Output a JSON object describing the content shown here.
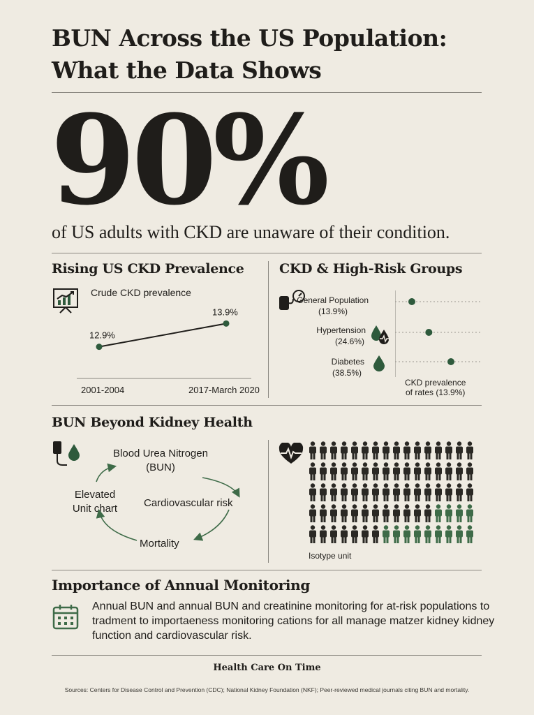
{
  "header": {
    "title_line1": "BUN Across the US Population:",
    "title_line2": "What the Data Shows"
  },
  "hero": {
    "stat": "90%",
    "caption": "of US adults with CKD are unaware of their condition."
  },
  "prevalence": {
    "title": "Rising US CKD Prevalence",
    "subtitle": "Crude CKD prevalence",
    "icon": "chart-presentation-icon",
    "chart_data": {
      "type": "line",
      "categories": [
        "2001-2004",
        "2017-March 2020"
      ],
      "values": [
        12.9,
        13.9
      ],
      "value_labels": [
        "12.9%",
        "13.9%"
      ],
      "title": "Crude CKD prevalence",
      "color": "#2e5a3c"
    }
  },
  "groups": {
    "title": "CKD & High-Risk Groups",
    "items": [
      {
        "label": "General Population",
        "value_label": "(13.9%)",
        "icon": "blood-pressure-monitor-icon"
      },
      {
        "label": "Hypertension",
        "value_label": "(24.6%)",
        "icon": "blood-drops-icon"
      },
      {
        "label": "Diabetes",
        "value_label": "(38.5%)",
        "icon": "blood-drop-icon"
      }
    ],
    "axis_label_line1": "CKD prevalence",
    "axis_label_line2": "of rates (13.9%)",
    "chart_data": {
      "type": "scatter",
      "categories": [
        "General Population",
        "Hypertension",
        "Diabetes"
      ],
      "values": [
        13.9,
        24.6,
        38.5
      ],
      "color": "#2e5a3c"
    }
  },
  "beyond": {
    "title": "BUN Beyond Kidney Health",
    "cycle": {
      "top_line1": "Blood Urea Nitrogen",
      "top_line2": "(BUN)",
      "right": "Cardiovascular risk",
      "bottom": "Mortality",
      "left_line1": "Elevated",
      "left_line2": "Unit chart"
    },
    "isotype_label": "Isotype unit",
    "isotype": {
      "rows": 5,
      "cols": 16,
      "highlighted_per_row": [
        0,
        0,
        0,
        4,
        9
      ],
      "dark_color": "#2a2824",
      "green_color": "#3e6b48"
    }
  },
  "monitoring": {
    "title": "Importance of Annual Monitoring",
    "text": "Annual BUN and annual BUN and creatinine monitoring for at-risk populations to tradment to importaeness monitoring cations for all manage matzer kidney kidney function and cardiovascular risk."
  },
  "footer": {
    "brand": "Health Care On Time",
    "sources": "Sources: Centers for Disease Control and Prevention (CDC); National Kidney Foundation (NKF); Peer-reviewed medical journals citing BUN and mortality."
  },
  "colors": {
    "background": "#efebe2",
    "ink": "#1f1d1a",
    "accent_green": "#2e5a3c"
  }
}
